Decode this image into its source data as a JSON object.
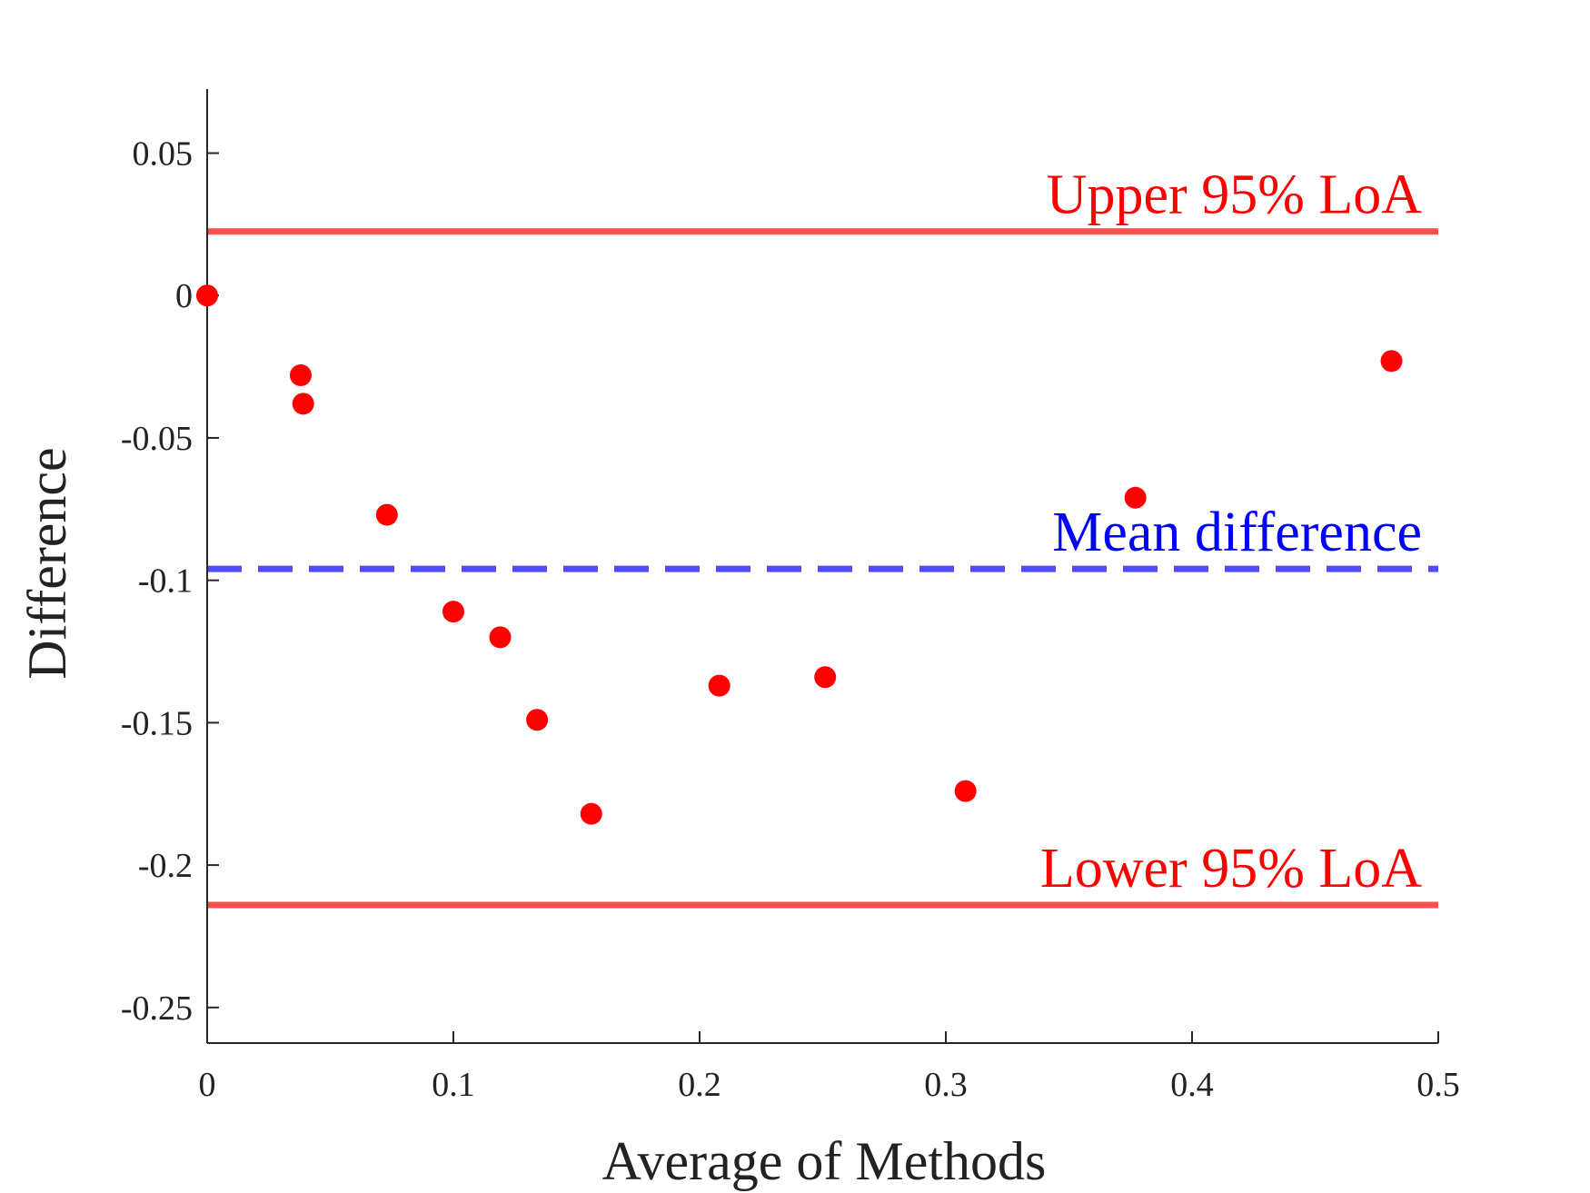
{
  "chart_data": {
    "type": "scatter",
    "title": "",
    "xlabel": "Average of Methods",
    "ylabel": "Difference",
    "xlim": [
      0,
      0.5
    ],
    "ylim": [
      -0.2625,
      0.0725
    ],
    "x_ticks": [
      0,
      0.1,
      0.2,
      0.3,
      0.4,
      0.5
    ],
    "x_tick_labels": [
      "0",
      "0.1",
      "0.2",
      "0.3",
      "0.4",
      "0.5"
    ],
    "y_ticks": [
      0.05,
      0,
      -0.05,
      -0.1,
      -0.15,
      -0.2,
      -0.25
    ],
    "y_tick_labels": [
      "0.05",
      "0",
      "-0.05",
      "-0.1",
      "-0.15",
      "-0.2",
      "-0.25"
    ],
    "grid": false,
    "series": [
      {
        "color": "#ff0000",
        "points": [
          {
            "x": 0.0,
            "y": 0.0
          },
          {
            "x": 0.038,
            "y": -0.028
          },
          {
            "x": 0.039,
            "y": -0.038
          },
          {
            "x": 0.073,
            "y": -0.077
          },
          {
            "x": 0.1,
            "y": -0.111
          },
          {
            "x": 0.119,
            "y": -0.12
          },
          {
            "x": 0.134,
            "y": -0.149
          },
          {
            "x": 0.156,
            "y": -0.182
          },
          {
            "x": 0.208,
            "y": -0.137
          },
          {
            "x": 0.251,
            "y": -0.134
          },
          {
            "x": 0.308,
            "y": -0.174
          },
          {
            "x": 0.377,
            "y": -0.071
          },
          {
            "x": 0.481,
            "y": -0.023
          }
        ]
      }
    ],
    "reference_lines": [
      {
        "label": "Upper 95% LoA",
        "y": 0.0225,
        "color": "#ff4d4d",
        "label_color": "#ff0000",
        "style": "solid"
      },
      {
        "label": "Mean difference",
        "y": -0.096,
        "color": "#4d4dff",
        "label_color": "#0000ff",
        "style": "dashed"
      },
      {
        "label": "Lower 95% LoA",
        "y": -0.214,
        "color": "#ff4d4d",
        "label_color": "#ff0000",
        "style": "solid"
      }
    ]
  }
}
